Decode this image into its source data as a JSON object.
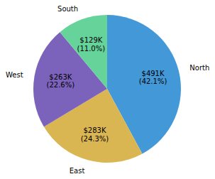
{
  "chart_data": {
    "type": "pie",
    "categories": [
      "North",
      "East",
      "West",
      "South"
    ],
    "values": [
      491,
      283,
      263,
      129
    ],
    "value_labels": [
      "$491K",
      "$283K",
      "$263K",
      "$129K"
    ],
    "percents": [
      42.1,
      24.3,
      22.6,
      11.0
    ],
    "percent_labels": [
      "(42.1%)",
      "(24.3%)",
      "(22.6%)",
      "(11.0%)"
    ],
    "colors": [
      "#4398d8",
      "#dab652",
      "#7b63bb",
      "#66d49a"
    ],
    "data_labels": true
  }
}
